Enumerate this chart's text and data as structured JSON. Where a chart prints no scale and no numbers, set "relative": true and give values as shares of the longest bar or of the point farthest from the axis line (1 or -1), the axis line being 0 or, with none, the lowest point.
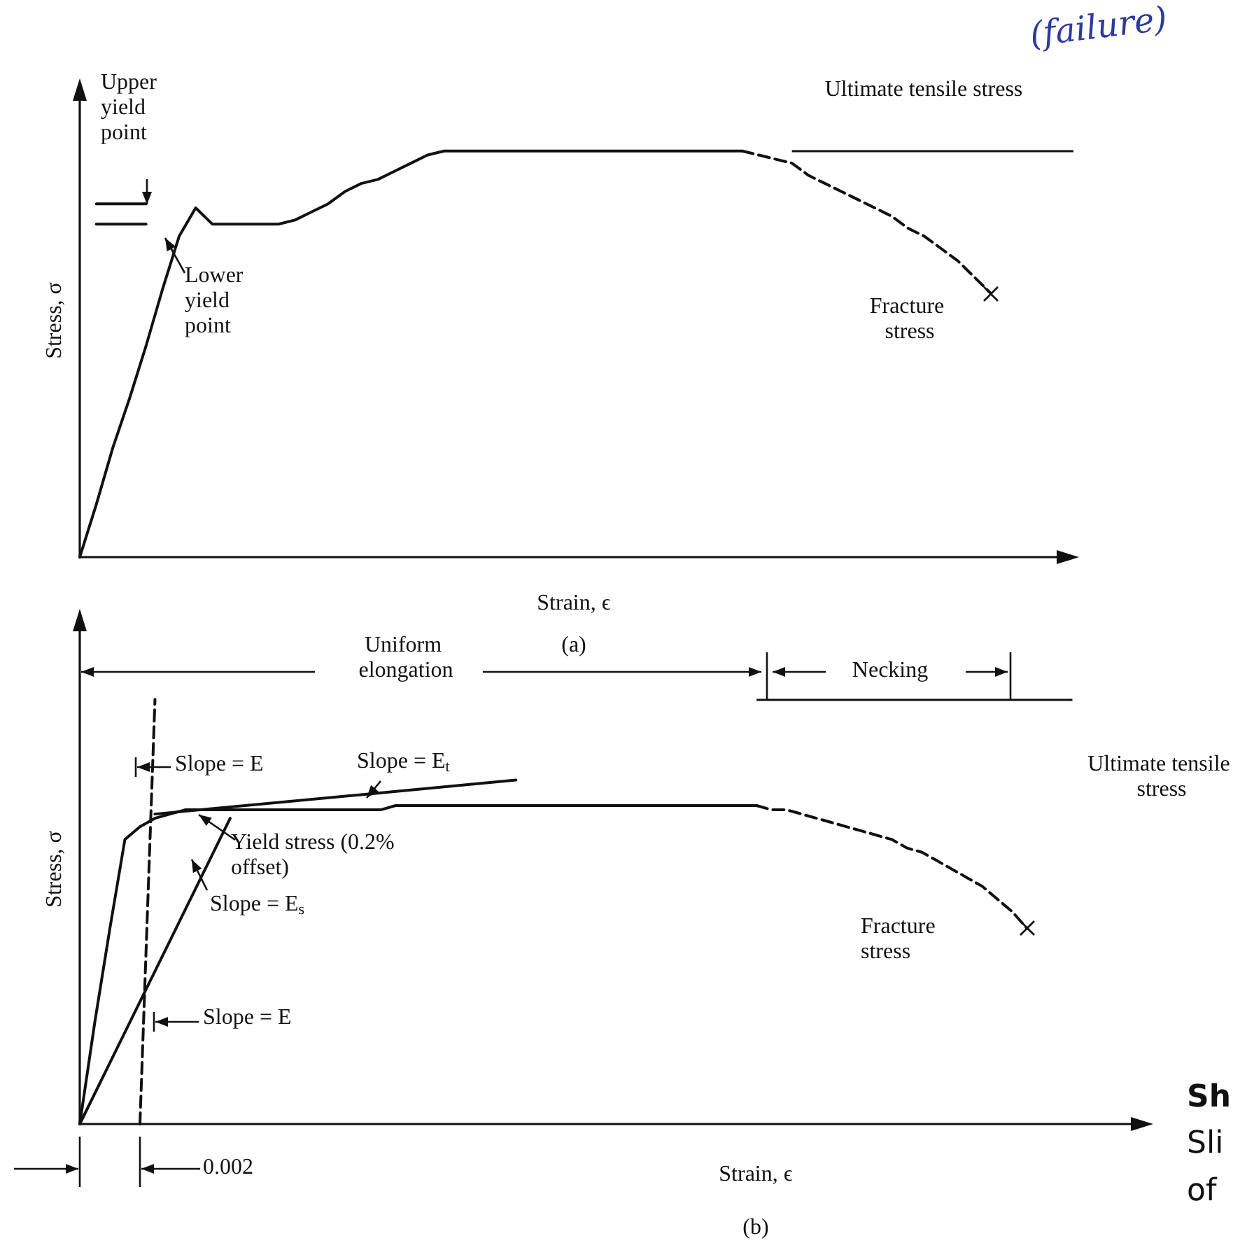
{
  "chart_data": [
    {
      "type": "line",
      "title": "(a)",
      "xlabel": "Strain, ϵ",
      "ylabel": "Stress, σ",
      "relative": true,
      "marker": "none",
      "categories": [
        null,
        null,
        null,
        null,
        null,
        null,
        null,
        null,
        null,
        null,
        null,
        null,
        null,
        null,
        null,
        null,
        null,
        null,
        null,
        null,
        null,
        null,
        null,
        null,
        null,
        null,
        null,
        null,
        null,
        null,
        null,
        null,
        null,
        null,
        null,
        null,
        null,
        null,
        null,
        null,
        null,
        null,
        null,
        null,
        null,
        null,
        null,
        null,
        null,
        null,
        null,
        null,
        null,
        null,
        null,
        null,
        null,
        null,
        null,
        null,
        null
      ],
      "series": [
        {
          "color": "#111111",
          "line_style": "solid",
          "values": [
            0,
            0.13,
            0.27,
            0.39,
            0.52,
            0.66,
            0.79,
            0.86,
            0.82,
            0.82,
            0.82,
            0.82,
            0.82,
            0.83,
            0.85,
            0.87,
            0.9,
            0.92,
            0.93,
            0.95,
            0.97,
            0.99,
            1,
            1,
            1,
            1,
            1,
            1,
            1,
            1,
            1,
            1,
            1,
            1,
            1,
            1,
            1,
            1,
            1,
            1,
            1,
            null,
            null,
            null,
            null,
            null,
            null,
            null,
            null,
            null,
            null,
            null,
            null,
            null,
            null,
            null,
            null,
            null,
            null,
            null,
            null
          ]
        },
        {
          "color": "#111111",
          "line_style": "dashed",
          "values": [
            null,
            null,
            null,
            null,
            null,
            null,
            null,
            null,
            null,
            null,
            null,
            null,
            null,
            null,
            null,
            null,
            null,
            null,
            null,
            null,
            null,
            null,
            null,
            null,
            null,
            null,
            null,
            null,
            null,
            null,
            null,
            null,
            null,
            null,
            null,
            null,
            null,
            null,
            null,
            null,
            1,
            0.99,
            0.98,
            0.97,
            0.94,
            0.92,
            0.9,
            0.88,
            0.86,
            0.84,
            0.81,
            0.79,
            0.76,
            0.73,
            0.69,
            0.65,
            null,
            null,
            null,
            null,
            null
          ]
        },
        {
          "name": "Upper yield point",
          "color": "#111111",
          "line_style": "solid",
          "values": [
            null,
            0.87,
            0.87,
            0.87,
            0.87,
            null,
            null,
            null,
            null,
            null,
            null,
            null,
            null,
            null,
            null,
            null,
            null,
            null,
            null,
            null,
            null,
            null,
            null,
            null,
            null,
            null,
            null,
            null,
            null,
            null,
            null,
            null,
            null,
            null,
            null,
            null,
            null,
            null,
            null,
            null,
            null,
            null,
            null,
            null,
            null,
            null,
            null,
            null,
            null,
            null,
            null,
            null,
            null,
            null,
            null,
            null,
            null,
            null,
            null,
            null,
            null
          ]
        },
        {
          "name": "Lower yield point",
          "color": "#111111",
          "line_style": "solid",
          "values": [
            null,
            0.82,
            0.82,
            0.82,
            0.82,
            null,
            null,
            null,
            null,
            null,
            null,
            null,
            null,
            null,
            null,
            null,
            null,
            null,
            null,
            null,
            null,
            null,
            null,
            null,
            null,
            null,
            null,
            null,
            null,
            null,
            null,
            null,
            null,
            null,
            null,
            null,
            null,
            null,
            null,
            null,
            null,
            null,
            null,
            null,
            null,
            null,
            null,
            null,
            null,
            null,
            null,
            null,
            null,
            null,
            null,
            null,
            null,
            null,
            null,
            null,
            null
          ]
        }
      ],
      "ref_lines": [
        {
          "axis": "y",
          "value": 1,
          "label": "Ultimate tensile stress"
        }
      ],
      "annotations": [
        "Fracture stress",
        "(failure)"
      ]
    },
    {
      "type": "line",
      "title": "(b)",
      "xlabel": "Strain, ϵ",
      "ylabel": "Stress, σ",
      "relative": true,
      "marker": "none",
      "categories": [
        null,
        null,
        null,
        null,
        null,
        null,
        null,
        null,
        null,
        null,
        null,
        null,
        null,
        null,
        null,
        null,
        null,
        null,
        null,
        null,
        null,
        null,
        null,
        null,
        null,
        null,
        null,
        null,
        null,
        null,
        null,
        null,
        null,
        null,
        null,
        null,
        null,
        null,
        null,
        null,
        null,
        null,
        null,
        null,
        null,
        null,
        null,
        null,
        null,
        null,
        null,
        null,
        null,
        null,
        null,
        null,
        null,
        null,
        null,
        null,
        null,
        null,
        null,
        null,
        null,
        null,
        null,
        null,
        null,
        null,
        null,
        null
      ],
      "series": [
        {
          "color": "#111111",
          "line_style": "solid",
          "values": [
            0,
            0.24,
            0.46,
            0.67,
            0.7,
            0.72,
            0.73,
            0.74,
            0.74,
            0.74,
            0.74,
            0.74,
            0.74,
            0.74,
            0.74,
            0.74,
            0.74,
            0.74,
            0.74,
            0.74,
            0.74,
            0.75,
            0.75,
            0.75,
            0.75,
            0.75,
            0.75,
            0.75,
            0.75,
            0.75,
            0.75,
            0.75,
            0.75,
            0.75,
            0.75,
            0.75,
            0.75,
            0.75,
            0.75,
            0.75,
            0.75,
            0.75,
            0.75,
            0.75,
            0.75,
            0.75,
            null,
            null,
            null,
            null,
            null,
            null,
            null,
            null,
            null,
            null,
            null,
            null,
            null,
            null,
            null,
            null,
            null,
            null,
            null,
            null,
            null,
            null,
            null,
            null,
            null,
            null
          ]
        },
        {
          "color": "#111111",
          "line_style": "dashed",
          "values": [
            null,
            null,
            null,
            null,
            null,
            null,
            null,
            null,
            null,
            null,
            null,
            null,
            null,
            null,
            null,
            null,
            null,
            null,
            null,
            null,
            null,
            null,
            null,
            null,
            null,
            null,
            null,
            null,
            null,
            null,
            null,
            null,
            null,
            null,
            null,
            null,
            null,
            null,
            null,
            null,
            null,
            null,
            null,
            null,
            null,
            0.75,
            0.74,
            0.74,
            0.73,
            0.72,
            0.71,
            0.7,
            0.69,
            0.68,
            0.67,
            0.65,
            0.64,
            0.62,
            0.6,
            0.58,
            0.56,
            0.53,
            0.5,
            0.46,
            null,
            null,
            null,
            null,
            null,
            null,
            null,
            null
          ]
        },
        {
          "color": "#111111",
          "line_style": "dashed",
          "values": [
            null,
            null,
            null,
            null,
            0,
            1,
            null,
            null,
            null,
            null,
            null,
            null,
            null,
            null,
            null,
            null,
            null,
            null,
            null,
            null,
            null,
            null,
            null,
            null,
            null,
            null,
            null,
            null,
            null,
            null,
            null,
            null,
            null,
            null,
            null,
            null,
            null,
            null,
            null,
            null,
            null,
            null,
            null,
            null,
            null,
            null,
            null,
            null,
            null,
            null,
            null,
            null,
            null,
            null,
            null,
            null,
            null,
            null,
            null,
            null,
            null,
            null,
            null,
            null,
            null,
            null,
            null,
            null,
            null,
            null,
            null,
            null
          ]
        },
        {
          "color": "#111111",
          "line_style": "solid",
          "values": [
            0,
            null,
            null,
            null,
            null,
            null,
            null,
            null,
            null,
            null,
            0.72,
            null,
            null,
            null,
            null,
            null,
            null,
            null,
            null,
            null,
            null,
            null,
            null,
            null,
            null,
            null,
            null,
            null,
            null,
            null,
            null,
            null,
            null,
            null,
            null,
            null,
            null,
            null,
            null,
            null,
            null,
            null,
            null,
            null,
            null,
            null,
            null,
            null,
            null,
            null,
            null,
            null,
            null,
            null,
            null,
            null,
            null,
            null,
            null,
            null,
            null,
            null,
            null,
            null,
            null,
            null,
            null,
            null,
            null,
            null,
            null,
            null
          ]
        },
        {
          "color": "#111111",
          "line_style": "solid",
          "values": [
            null,
            null,
            null,
            null,
            null,
            0.73,
            null,
            null,
            null,
            null,
            null,
            null,
            null,
            null,
            null,
            null,
            null,
            null,
            null,
            null,
            null,
            null,
            null,
            null,
            null,
            null,
            null,
            null,
            null,
            0.81,
            null,
            null,
            null,
            null,
            null,
            null,
            null,
            null,
            null,
            null,
            null,
            null,
            null,
            null,
            null,
            null,
            null,
            null,
            null,
            null,
            null,
            null,
            null,
            null,
            null,
            null,
            null,
            null,
            null,
            null,
            null,
            null,
            null,
            null,
            null,
            null,
            null,
            null,
            null,
            null,
            null,
            null
          ]
        }
      ],
      "ref_lines": [
        {
          "axis": "y",
          "value": 1,
          "label": "Ultimate tensile stress"
        }
      ],
      "annotations": [
        "Uniform elongation",
        "Necking",
        "Slope = E",
        "Slope = E$_{t}$",
        "Yield stress (0.2% offset)",
        "Slope = E$_{s}$",
        "Slope = E",
        "0.002",
        "Fracture stress",
        "Sh",
        "Sli",
        "of"
      ]
    }
  ]
}
